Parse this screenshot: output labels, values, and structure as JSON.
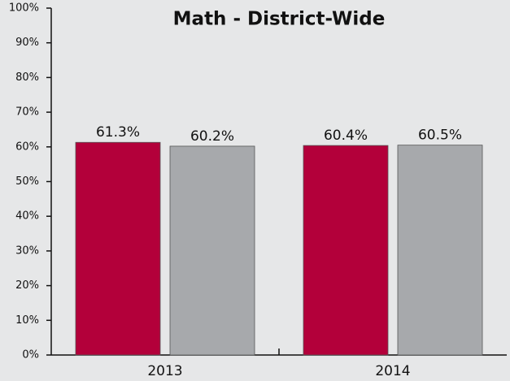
{
  "chart_data": {
    "type": "bar",
    "title": "Math - District-Wide",
    "categories": [
      "2013",
      "2014"
    ],
    "series": [
      {
        "color": "#b3003a",
        "values": [
          61.3,
          60.4
        ],
        "value_labels": [
          "61.3%",
          "60.4%"
        ]
      },
      {
        "color": "#a7a9ac",
        "values": [
          60.2,
          60.5
        ],
        "value_labels": [
          "60.2%",
          "60.5%"
        ]
      }
    ],
    "ylim": [
      0,
      100
    ],
    "yticks": [
      {
        "value": 0,
        "label": "0%"
      },
      {
        "value": 10,
        "label": "10%"
      },
      {
        "value": 20,
        "label": "20%"
      },
      {
        "value": 30,
        "label": "30%"
      },
      {
        "value": 40,
        "label": "40%"
      },
      {
        "value": 50,
        "label": "50%"
      },
      {
        "value": 60,
        "label": "60%"
      },
      {
        "value": 70,
        "label": "70%"
      },
      {
        "value": 80,
        "label": "80%"
      },
      {
        "value": 90,
        "label": "90%"
      },
      {
        "value": 100,
        "label": "100%"
      }
    ],
    "grid": false
  }
}
